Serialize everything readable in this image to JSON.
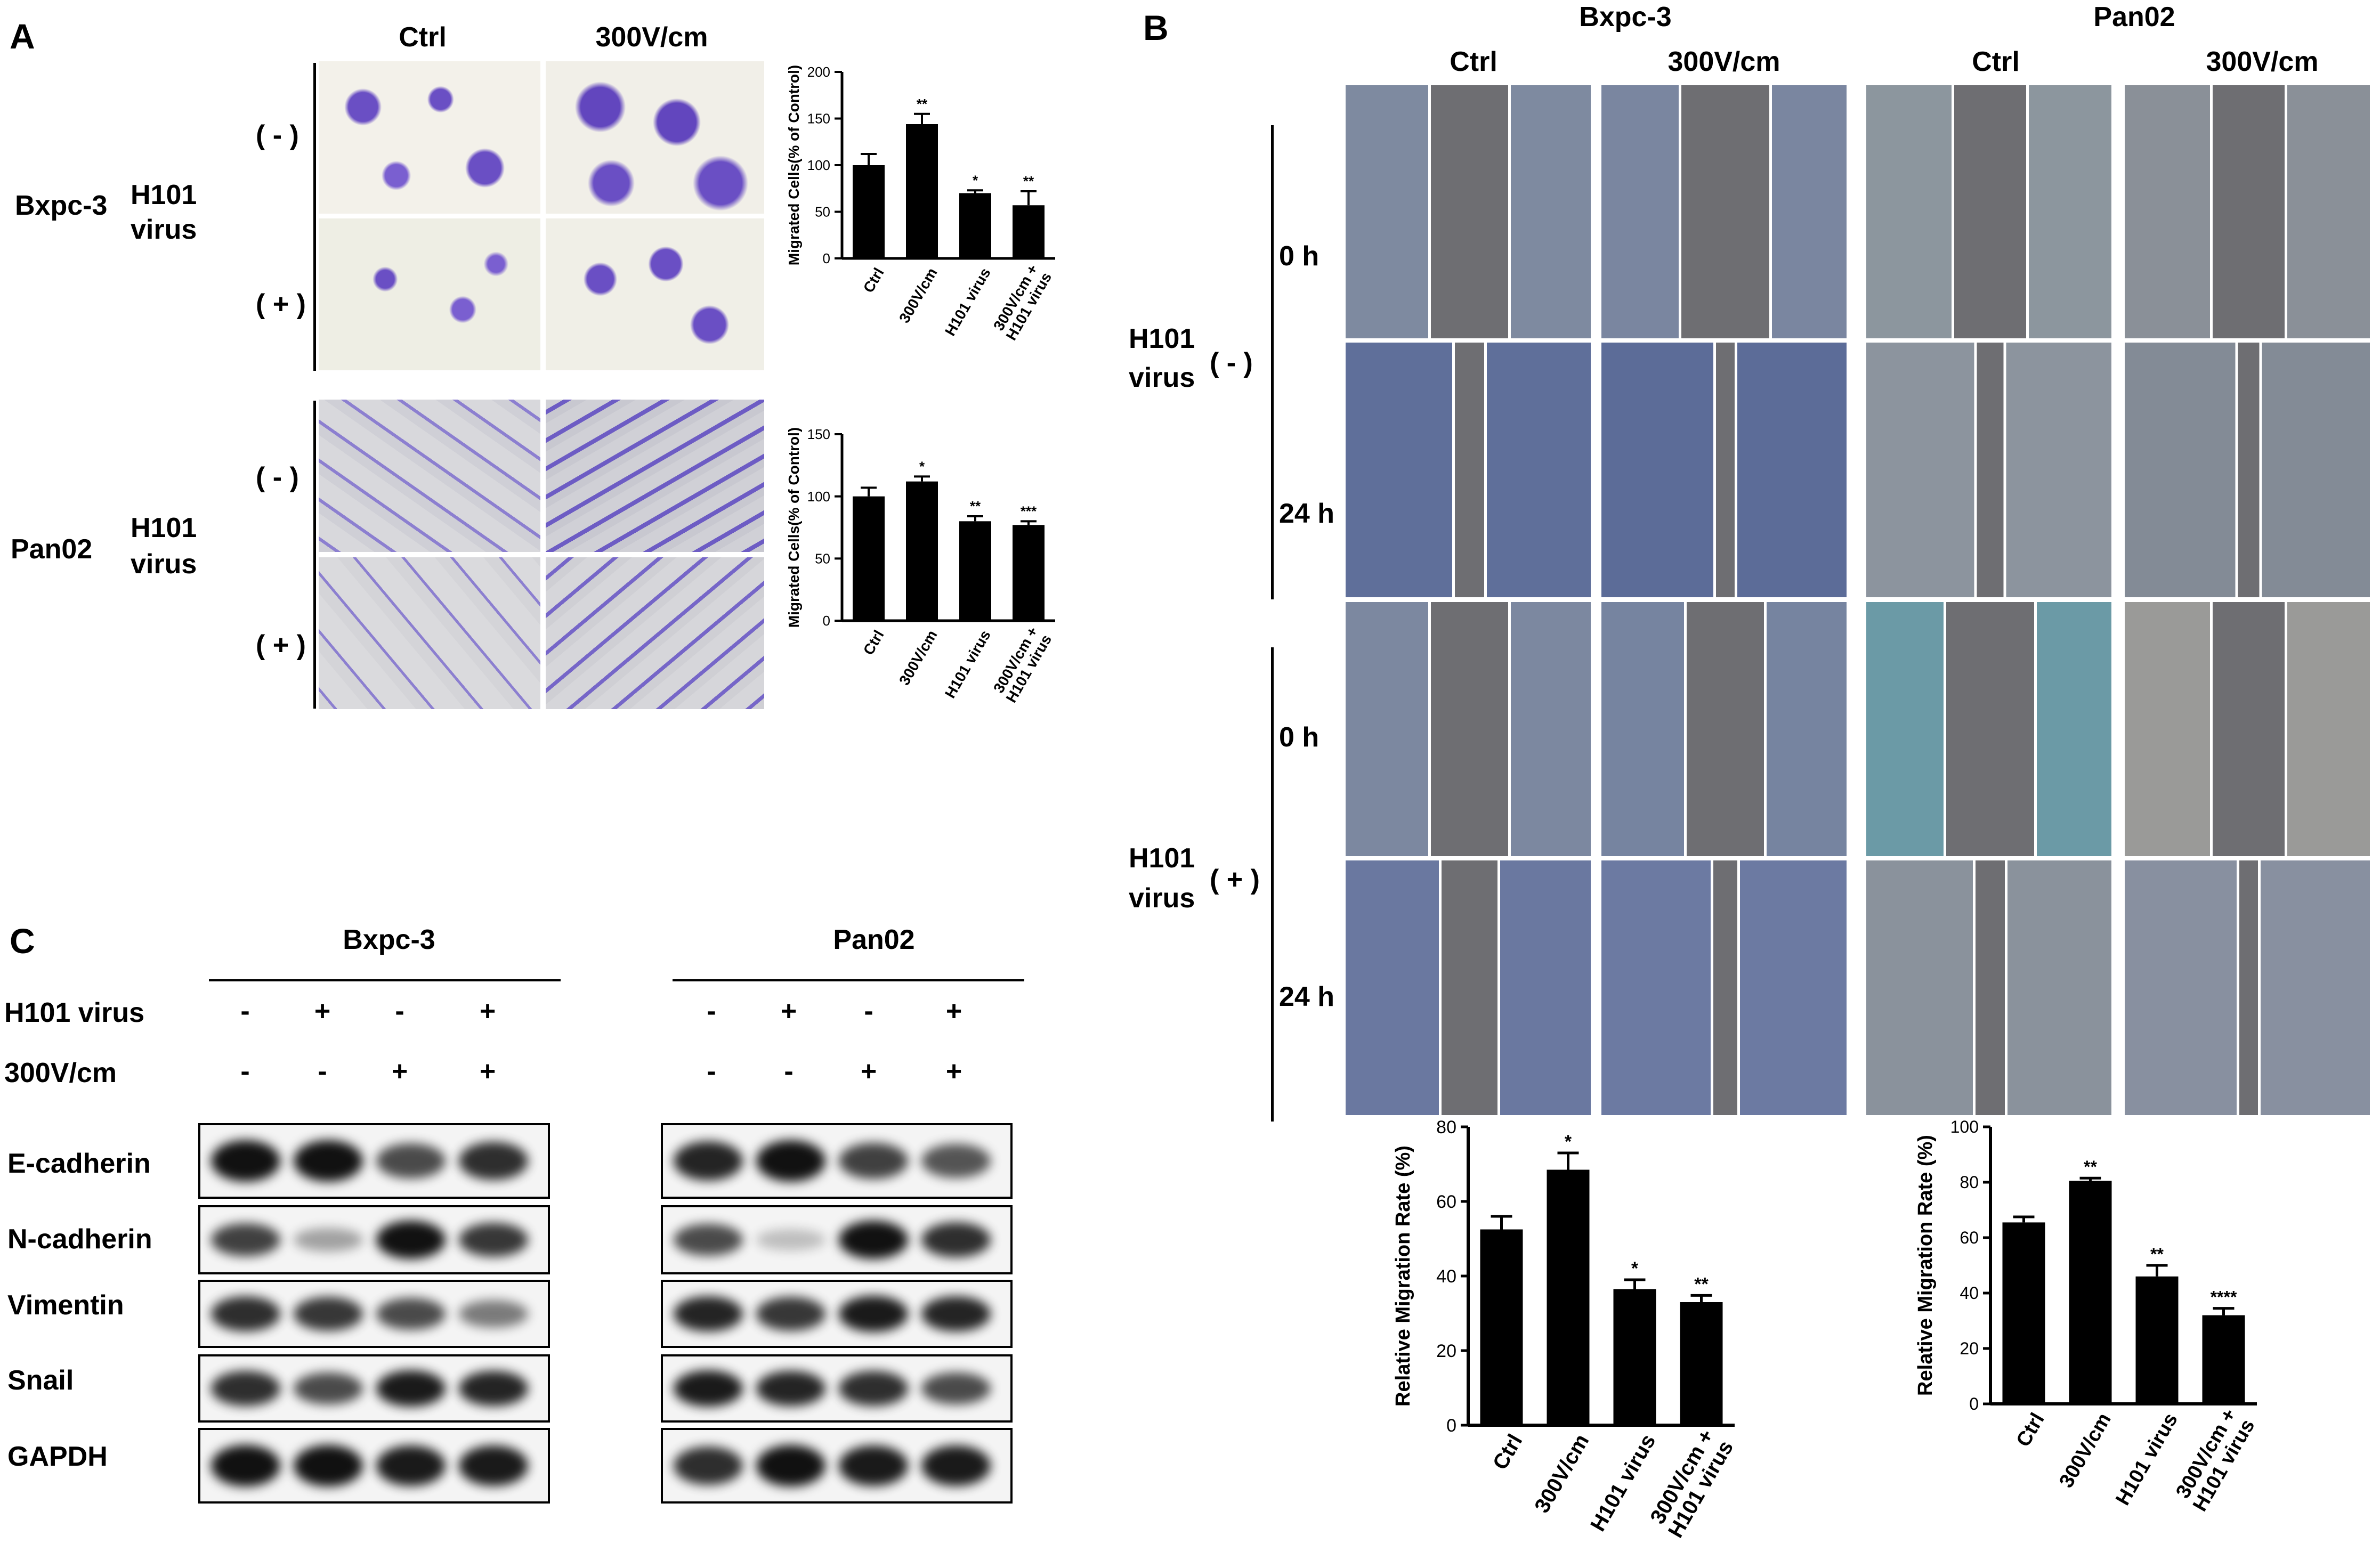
{
  "panel_a": {
    "label": "A",
    "col_headers": [
      "Ctrl",
      "300V/cm"
    ],
    "rows": [
      {
        "cell_line": "Bxpc-3",
        "treatment": [
          "H101",
          "virus"
        ],
        "conditions": [
          "( - )",
          "( + )"
        ]
      },
      {
        "cell_line": "Pan02",
        "treatment": [
          "H101",
          "virus"
        ],
        "conditions": [
          "( - )",
          "( + )"
        ]
      }
    ]
  },
  "panel_b": {
    "label": "B",
    "groups": [
      "Bxpc-3",
      "Pan02"
    ],
    "col_headers": [
      "Ctrl",
      "300V/cm",
      "Ctrl",
      "300V/cm"
    ],
    "virus_groups": [
      {
        "label": [
          "H101",
          "virus"
        ],
        "sign": "( - )"
      },
      {
        "label": [
          "H101",
          "virus"
        ],
        "sign": "( + )"
      }
    ],
    "times": [
      "0 h",
      "24 h",
      "0 h",
      "24 h"
    ]
  },
  "panel_c": {
    "label": "C",
    "groups": [
      "Bxpc-3",
      "Pan02"
    ],
    "conditions": [
      {
        "name": "H101 virus",
        "signs": [
          "-",
          "+",
          "-",
          "+"
        ]
      },
      {
        "name": "300V/cm",
        "signs": [
          "-",
          "-",
          "+",
          "+"
        ]
      }
    ],
    "proteins": [
      "E-cadherin",
      "N-cadherin",
      "Vimentin",
      "Snail",
      "GAPDH"
    ],
    "band_intensity": {
      "Bxpc-3": [
        [
          1.0,
          1.0,
          0.7,
          0.85
        ],
        [
          0.75,
          0.25,
          1.0,
          0.8
        ],
        [
          0.85,
          0.8,
          0.7,
          0.45
        ],
        [
          0.85,
          0.7,
          0.95,
          0.9
        ],
        [
          1.0,
          1.0,
          0.95,
          0.95
        ]
      ],
      "Pan02": [
        [
          0.9,
          1.0,
          0.75,
          0.65
        ],
        [
          0.7,
          0.1,
          1.0,
          0.85
        ],
        [
          0.9,
          0.8,
          0.95,
          0.9
        ],
        [
          0.95,
          0.9,
          0.85,
          0.7
        ],
        [
          0.85,
          1.0,
          0.95,
          0.95
        ]
      ]
    }
  },
  "chart_data": [
    {
      "type": "bar",
      "panel": "A-Bxpc-3",
      "categories": [
        "Ctrl",
        "300V/cm",
        "H101 virus",
        "300V/cm + H101 virus"
      ],
      "values": [
        100,
        144,
        70,
        57
      ],
      "errors": [
        12,
        11,
        3,
        15
      ],
      "significance": [
        "",
        "**",
        "*",
        "**"
      ],
      "ylabel": "Migrated Cells(% of Control)",
      "ylim": [
        0,
        200
      ],
      "yticks": [
        0,
        50,
        100,
        150,
        200
      ]
    },
    {
      "type": "bar",
      "panel": "A-Pan02",
      "categories": [
        "Ctrl",
        "300V/cm",
        "H101 virus",
        "300V/cm + H101 virus"
      ],
      "values": [
        100,
        112,
        80,
        77
      ],
      "errors": [
        7,
        4,
        4,
        3
      ],
      "significance": [
        "",
        "*",
        "**",
        "***"
      ],
      "ylabel": "Migrated Cells(% of Control)",
      "ylim": [
        0,
        150
      ],
      "yticks": [
        0,
        50,
        100,
        150
      ]
    },
    {
      "type": "bar",
      "panel": "B-Bxpc-3",
      "categories": [
        "Ctrl",
        "300V/cm",
        "H101 virus",
        "300V/cm + H101 virus"
      ],
      "values": [
        52.5,
        68.5,
        36.5,
        33
      ],
      "errors": [
        3.5,
        4.5,
        2.5,
        1.8
      ],
      "significance": [
        "",
        "*",
        "*",
        "**"
      ],
      "ylabel": "Relative Migration  Rate (%)",
      "ylim": [
        0,
        80
      ],
      "yticks": [
        0,
        20,
        40,
        60,
        80
      ]
    },
    {
      "type": "bar",
      "panel": "B-Pan02",
      "categories": [
        "Ctrl",
        "300V/cm",
        "H101 virus",
        "300V/cm + H101 virus"
      ],
      "values": [
        65.5,
        80.5,
        46,
        32
      ],
      "errors": [
        2,
        1,
        4,
        2.5
      ],
      "significance": [
        "",
        "**",
        "**",
        "****"
      ],
      "ylabel": "Relative Migration  Rate (%)",
      "ylim": [
        0,
        100
      ],
      "yticks": [
        0,
        20,
        40,
        60,
        80,
        100
      ]
    }
  ]
}
